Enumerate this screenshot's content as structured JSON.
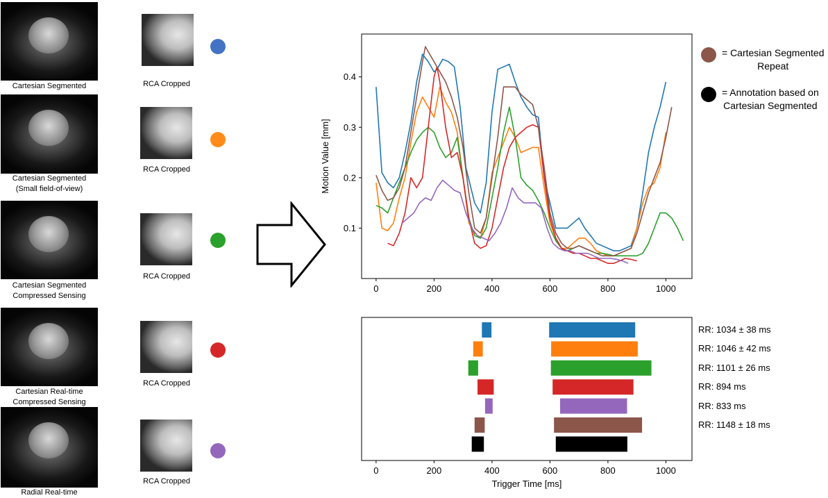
{
  "rows": [
    {
      "label": "Cartesian Segmented",
      "crop_label": "RCA Cropped",
      "color": "#4472c4"
    },
    {
      "label": "Cartesian Segmented\n(Small field-of-view)",
      "crop_label": "RCA Cropped",
      "color": "#ff8c1a"
    },
    {
      "label": "Cartesian Segmented\nCompressed Sensing",
      "crop_label": "RCA Cropped",
      "color": "#2ca02c"
    },
    {
      "label": "Cartesian Real-time\nCompressed Sensing",
      "crop_label": "RCA Cropped",
      "color": "#d62728"
    },
    {
      "label": "Radial Real-time",
      "crop_label": "RCA Cropped",
      "color": "#9467bd"
    }
  ],
  "legend": [
    {
      "text": "= Cartesian Segmented\nRepeat",
      "color": "#8c564b"
    },
    {
      "text": "= Annotation based on\nCartesian Segmented",
      "color": "#000000"
    }
  ],
  "chart_data": [
    {
      "type": "line",
      "title": "",
      "xlabel": "",
      "ylabel": "Motion Value [mm]",
      "xlim": [
        -50,
        1090
      ],
      "ylim": [
        0.0,
        0.485
      ],
      "xticks": [
        0,
        200,
        400,
        600,
        800,
        1000
      ],
      "yticks": [
        0.1,
        0.2,
        0.3,
        0.4
      ],
      "yticklabels": [
        "0.1",
        "0.2",
        "0.3",
        "0.4"
      ],
      "series": [
        {
          "name": "blue",
          "color": "#1f77b4",
          "x": [
            0,
            20,
            40,
            60,
            80,
            100,
            120,
            140,
            160,
            180,
            200,
            210,
            230,
            250,
            270,
            290,
            310,
            340,
            360,
            380,
            400,
            420,
            440,
            460,
            480,
            500,
            520,
            540,
            560,
            580,
            600,
            620,
            640,
            660,
            680,
            700,
            720,
            740,
            760,
            780,
            800,
            820,
            840,
            860,
            880,
            900,
            920,
            940,
            960,
            980,
            1000
          ],
          "y": [
            0.38,
            0.21,
            0.19,
            0.18,
            0.2,
            0.25,
            0.31,
            0.39,
            0.445,
            0.43,
            0.41,
            0.415,
            0.435,
            0.43,
            0.42,
            0.34,
            0.22,
            0.15,
            0.13,
            0.19,
            0.33,
            0.415,
            0.42,
            0.425,
            0.39,
            0.36,
            0.34,
            0.325,
            0.32,
            0.2,
            0.15,
            0.1,
            0.1,
            0.1,
            0.11,
            0.12,
            0.1,
            0.085,
            0.07,
            0.065,
            0.06,
            0.055,
            0.055,
            0.06,
            0.065,
            0.1,
            0.17,
            0.25,
            0.3,
            0.34,
            0.39
          ]
        },
        {
          "name": "orange",
          "color": "#ff7f0e",
          "x": [
            0,
            20,
            40,
            60,
            80,
            100,
            120,
            140,
            160,
            180,
            200,
            220,
            240,
            260,
            280,
            300,
            320,
            340,
            360,
            380,
            400,
            420,
            440,
            460,
            480,
            500,
            520,
            540,
            560,
            580,
            600,
            620,
            640,
            660,
            680,
            700,
            720,
            740,
            760,
            780,
            800,
            820,
            840,
            860,
            880,
            900,
            920,
            940,
            960,
            980,
            1000
          ],
          "y": [
            0.19,
            0.1,
            0.095,
            0.11,
            0.16,
            0.2,
            0.27,
            0.33,
            0.36,
            0.34,
            0.32,
            0.38,
            0.35,
            0.33,
            0.29,
            0.2,
            0.11,
            0.09,
            0.08,
            0.12,
            0.21,
            0.24,
            0.27,
            0.3,
            0.28,
            0.25,
            0.255,
            0.26,
            0.26,
            0.18,
            0.11,
            0.08,
            0.06,
            0.06,
            0.07,
            0.08,
            0.08,
            0.07,
            0.055,
            0.05,
            0.045,
            0.045,
            0.05,
            0.055,
            0.06,
            0.1,
            0.15,
            0.18,
            0.19,
            0.22,
            0.29
          ]
        },
        {
          "name": "green",
          "color": "#2ca02c",
          "x": [
            0,
            20,
            40,
            60,
            80,
            100,
            120,
            140,
            160,
            180,
            200,
            220,
            240,
            260,
            280,
            300,
            320,
            340,
            360,
            380,
            400,
            420,
            440,
            460,
            480,
            500,
            520,
            540,
            560,
            580,
            600,
            620,
            640,
            660,
            680,
            700,
            720,
            740,
            760,
            780,
            800,
            820,
            840,
            860,
            880,
            900,
            920,
            940,
            960,
            980,
            1000,
            1020,
            1040,
            1060
          ],
          "y": [
            0.145,
            0.14,
            0.13,
            0.16,
            0.19,
            0.22,
            0.25,
            0.275,
            0.29,
            0.3,
            0.29,
            0.26,
            0.24,
            0.25,
            0.28,
            0.2,
            0.12,
            0.085,
            0.08,
            0.1,
            0.16,
            0.22,
            0.29,
            0.34,
            0.28,
            0.2,
            0.185,
            0.175,
            0.155,
            0.13,
            0.1,
            0.075,
            0.06,
            0.055,
            0.06,
            0.065,
            0.06,
            0.055,
            0.05,
            0.05,
            0.048,
            0.045,
            0.045,
            0.045,
            0.045,
            0.045,
            0.05,
            0.07,
            0.1,
            0.13,
            0.13,
            0.12,
            0.1,
            0.075
          ]
        },
        {
          "name": "red",
          "color": "#d62728",
          "x": [
            40,
            60,
            80,
            100,
            120,
            140,
            160,
            180,
            200,
            210,
            220,
            240,
            260,
            280,
            300,
            320,
            340,
            360,
            380,
            400,
            420,
            440,
            460,
            480,
            500,
            520,
            540,
            560,
            580,
            600,
            620,
            640,
            660,
            680,
            700,
            720,
            740,
            760,
            780,
            800,
            820,
            840,
            860,
            880,
            900
          ],
          "y": [
            0.07,
            0.065,
            0.09,
            0.13,
            0.2,
            0.18,
            0.2,
            0.3,
            0.4,
            0.42,
            0.39,
            0.3,
            0.24,
            0.25,
            0.2,
            0.12,
            0.07,
            0.06,
            0.065,
            0.1,
            0.16,
            0.22,
            0.26,
            0.28,
            0.29,
            0.3,
            0.305,
            0.3,
            0.2,
            0.12,
            0.08,
            0.06,
            0.055,
            0.05,
            0.05,
            0.045,
            0.04,
            0.04,
            0.035,
            0.03,
            0.03,
            0.035,
            0.04,
            0.038,
            0.035
          ]
        },
        {
          "name": "purple",
          "color": "#9467bd",
          "x": [
            90,
            110,
            130,
            150,
            170,
            190,
            210,
            230,
            250,
            270,
            290,
            310,
            330,
            350,
            370,
            390,
            410,
            430,
            450,
            470,
            490,
            510,
            530,
            550,
            570,
            590,
            610,
            630,
            650,
            670,
            690,
            710,
            730,
            750,
            770,
            790,
            810,
            830,
            850,
            870
          ],
          "y": [
            0.11,
            0.12,
            0.13,
            0.15,
            0.16,
            0.155,
            0.18,
            0.195,
            0.185,
            0.175,
            0.17,
            0.13,
            0.1,
            0.085,
            0.08,
            0.075,
            0.09,
            0.11,
            0.14,
            0.18,
            0.16,
            0.15,
            0.15,
            0.15,
            0.14,
            0.1,
            0.07,
            0.06,
            0.055,
            0.055,
            0.05,
            0.05,
            0.05,
            0.045,
            0.04,
            0.04,
            0.04,
            0.038,
            0.035,
            0.03
          ]
        },
        {
          "name": "brown",
          "color": "#8c564b",
          "x": [
            0,
            20,
            40,
            60,
            80,
            100,
            120,
            140,
            160,
            170,
            180,
            200,
            220,
            240,
            260,
            280,
            300,
            320,
            340,
            360,
            380,
            400,
            420,
            440,
            460,
            480,
            500,
            520,
            540,
            560,
            580,
            600,
            620,
            640,
            660,
            680,
            700,
            720,
            740,
            760,
            780,
            800,
            820,
            840,
            860,
            880,
            900,
            920,
            940,
            960,
            980,
            1000,
            1020
          ],
          "y": [
            0.205,
            0.175,
            0.155,
            0.16,
            0.18,
            0.22,
            0.29,
            0.36,
            0.43,
            0.46,
            0.45,
            0.43,
            0.41,
            0.39,
            0.36,
            0.32,
            0.26,
            0.17,
            0.1,
            0.09,
            0.12,
            0.2,
            0.28,
            0.38,
            0.38,
            0.38,
            0.365,
            0.355,
            0.345,
            0.3,
            0.22,
            0.13,
            0.09,
            0.07,
            0.06,
            0.06,
            0.065,
            0.06,
            0.055,
            0.05,
            0.045,
            0.045,
            0.045,
            0.05,
            0.055,
            0.06,
            0.09,
            0.13,
            0.17,
            0.2,
            0.23,
            0.28,
            0.34
          ]
        }
      ]
    },
    {
      "type": "bar",
      "title": "",
      "xlabel": "Trigger Time [ms]",
      "ylabel": "",
      "xlim": [
        -50,
        1090
      ],
      "xticks": [
        0,
        200,
        400,
        600,
        800,
        1000
      ],
      "rr_labels": [
        "RR:  1034 ± 38 ms",
        "RR:  1046 ± 42 ms",
        "RR:  1101 ± 26 ms",
        "RR:  894 ms",
        "RR:  833 ms",
        "RR:  1148 ± 18 ms"
      ],
      "rows": [
        {
          "color": "#1f77b4",
          "intervals": [
            [
              365,
              398
            ],
            [
              597,
              894
            ]
          ]
        },
        {
          "color": "#ff7f0e",
          "intervals": [
            [
              335,
              368
            ],
            [
              604,
              903
            ]
          ]
        },
        {
          "color": "#2ca02c",
          "intervals": [
            [
              318,
              352
            ],
            [
              603,
              950
            ]
          ]
        },
        {
          "color": "#d62728",
          "intervals": [
            [
              350,
              406
            ],
            [
              609,
              888
            ]
          ]
        },
        {
          "color": "#9467bd",
          "intervals": [
            [
              376,
              402
            ],
            [
              635,
              866
            ]
          ]
        },
        {
          "color": "#8c564b",
          "intervals": [
            [
              340,
              375
            ],
            [
              614,
              918
            ]
          ]
        },
        {
          "color": "#000000",
          "intervals": [
            [
              330,
              372
            ],
            [
              620,
              867
            ]
          ]
        }
      ]
    }
  ]
}
